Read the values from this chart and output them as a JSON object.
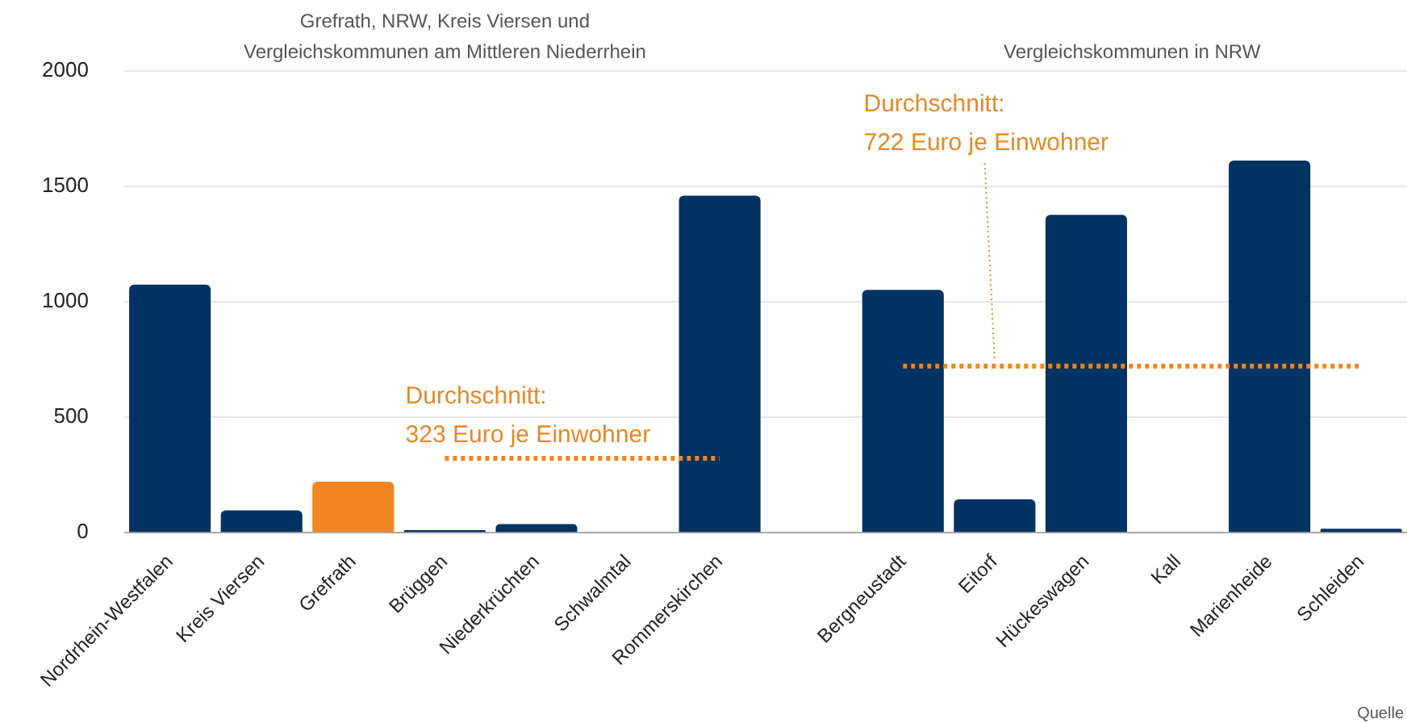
{
  "chart_data": {
    "type": "bar",
    "categories": [
      "Nordrhein-Westfalen",
      "Kreis Viersen",
      "Grefrath",
      "Brüggen",
      "Niederkrüchten",
      "Schwalmtal",
      "Rommerskirchen",
      null,
      "Bergneustadt",
      "Eitorf",
      "Hückeswagen",
      "Kall",
      "Marienheide",
      "Schleiden"
    ],
    "series": [
      {
        "colors": [
          "#003262",
          "#003262",
          "#f0861f",
          "#003262",
          "#003262",
          "#003262",
          "#003262",
          "#003262",
          "#003262",
          "#003262",
          "#003262",
          "#003262",
          "#003262",
          "#003262"
        ],
        "values": [
          1075,
          97,
          221,
          12,
          38,
          0,
          1460,
          null,
          1052,
          145,
          1377,
          0,
          1612,
          18
        ]
      },
      {
        "type": "line",
        "color": "#f0861f",
        "line_style": "dotted",
        "values": [
          null,
          null,
          null,
          323,
          323,
          323,
          323,
          null,
          null,
          null,
          null,
          null,
          null,
          null
        ]
      },
      {
        "type": "line",
        "color": "#f0861f",
        "line_style": "dotted",
        "values": [
          null,
          null,
          null,
          null,
          null,
          null,
          null,
          null,
          722,
          722,
          722,
          722,
          722,
          722
        ]
      }
    ],
    "ylim": [
      0,
      2000
    ],
    "yticks": [
      0,
      500,
      1000,
      1500,
      2000
    ],
    "grid": "y",
    "legend": false,
    "annotations": [
      "Grefrath, NRW, Kreis Viersen und\nVergleichskommunen am Mittleren Niederrhein",
      "Vergleichskommunen in NRW",
      "Quelle",
      {
        "text": "Durchschnitt:\n323 Euro je Einwohner",
        "x": "Brüggen",
        "y": 323
      },
      {
        "text": "Durchschnitt:\n722 Euro je Einwohner",
        "x": "Eitorf",
        "y": 722
      }
    ]
  }
}
